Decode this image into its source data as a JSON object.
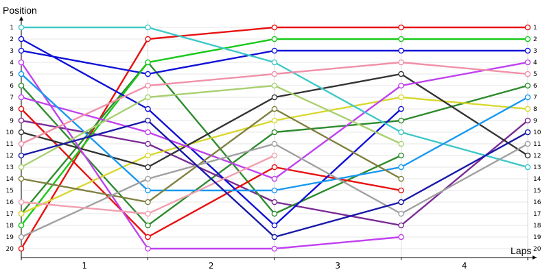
{
  "chart_data": {
    "type": "line",
    "title": "",
    "ylabel": "Position",
    "xlabel": "Laps",
    "y_ticks": [
      "1",
      "2",
      "3",
      "4",
      "5",
      "6",
      "7",
      "8",
      "9",
      "10",
      "11",
      "12",
      "13",
      "14",
      "15",
      "16",
      "17",
      "18",
      "19",
      "20"
    ],
    "x_categories": [
      "1",
      "2",
      "3",
      "4"
    ],
    "x_checkpoints": [
      0,
      1,
      2,
      3,
      4
    ],
    "ylim": [
      1,
      20
    ],
    "grid": true,
    "series": [
      {
        "color": "#2e8b2e",
        "values": [
          6,
          18,
          10,
          9,
          6
        ]
      },
      {
        "color": "#e81010",
        "values": [
          20,
          2,
          1,
          1,
          1
        ]
      },
      {
        "color": "#7a2a94",
        "values": [
          9,
          11,
          16,
          18,
          9
        ]
      },
      {
        "color": "#2e8b2e",
        "values": [
          17,
          4,
          17,
          12,
          null
        ]
      },
      {
        "color": "#e81010",
        "values": [
          8,
          19,
          13,
          15,
          null
        ]
      },
      {
        "color": "#1010d8",
        "values": [
          3,
          5,
          3,
          3,
          3
        ]
      },
      {
        "color": "#18c818",
        "values": [
          18,
          4,
          2,
          2,
          2
        ]
      },
      {
        "color": "#1010d8",
        "values": [
          2,
          8,
          18,
          8,
          null
        ]
      },
      {
        "color": "#d8d830",
        "values": [
          17,
          12,
          9,
          7,
          8
        ]
      },
      {
        "color": "#333333",
        "values": [
          10,
          13,
          7,
          5,
          12
        ]
      },
      {
        "color": "#c040f0",
        "values": [
          4,
          20,
          20,
          19,
          null
        ]
      },
      {
        "color": "#c040f0",
        "values": [
          7,
          10,
          14,
          6,
          4
        ]
      },
      {
        "color": "#40c8c8",
        "values": [
          1,
          1,
          4,
          10,
          13
        ]
      },
      {
        "color": "#1898f0",
        "values": [
          5,
          15,
          15,
          13,
          7
        ]
      },
      {
        "color": "#f090a8",
        "values": [
          11,
          6,
          5,
          4,
          5
        ]
      },
      {
        "color": "#808040",
        "values": [
          14,
          16,
          8,
          14,
          null
        ]
      },
      {
        "color": "#a8d070",
        "values": [
          13,
          7,
          6,
          11,
          null
        ]
      },
      {
        "color": "#a0a0a0",
        "values": [
          19,
          14,
          11,
          17,
          11
        ]
      },
      {
        "color": "#f0a0b0",
        "values": [
          16,
          17,
          12,
          null,
          null
        ]
      },
      {
        "color": "#1818a8",
        "values": [
          12,
          9,
          19,
          16,
          10
        ]
      }
    ]
  }
}
